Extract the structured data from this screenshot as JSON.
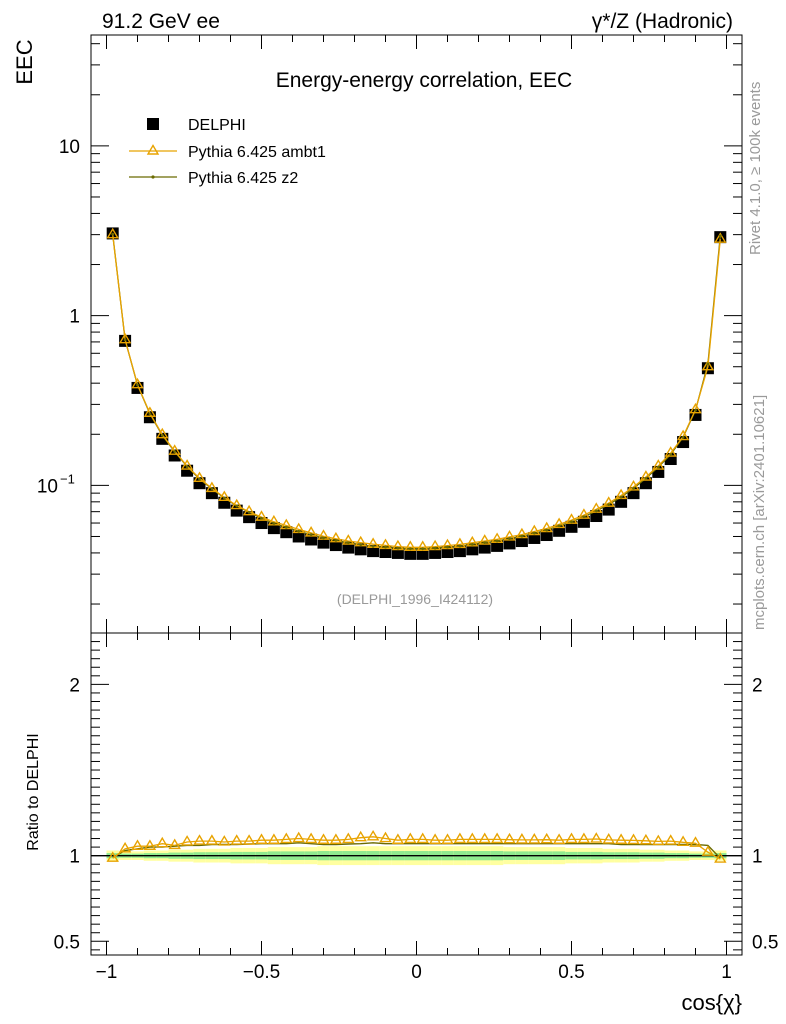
{
  "header": {
    "left_label": "91.2 GeV ee",
    "right_label": "γ*/Z (Hadronic)"
  },
  "side_labels": {
    "rivet": "Rivet 4.1.0, ≥ 100k events",
    "mcplots": "mcplots.cern.ch [arXiv:2401.10621]"
  },
  "chart_data": [
    {
      "type": "scatter",
      "title": "Energy-energy correlation, EEC",
      "watermark": "(DELPHI_1996_I424112)",
      "xlabel": "cos{χ}",
      "ylabel": "EEC",
      "xlim": [
        -1.05,
        1.05
      ],
      "ylim": [
        0.0135,
        45
      ],
      "yscale": "log",
      "y_ticks": [
        {
          "value": 0.1,
          "label": "10",
          "exponent": "−1"
        },
        {
          "value": 1,
          "label": "1"
        },
        {
          "value": 10,
          "label": "10"
        }
      ],
      "x_ticks": [
        "−1",
        "−0.5",
        "0",
        "0.5",
        "1"
      ],
      "x_tick_values": [
        -1,
        -0.5,
        0,
        0.5,
        1
      ],
      "legend": [
        {
          "name": "DELPHI",
          "color": "#000000",
          "marker": "square"
        },
        {
          "name": "Pythia 6.425 ambt1",
          "color": "#E8A300",
          "marker": "triangle"
        },
        {
          "name": "Pythia 6.425 z2",
          "color": "#6B6B00",
          "marker": "dot"
        }
      ],
      "x": [
        -0.98,
        -0.94,
        -0.9,
        -0.86,
        -0.82,
        -0.78,
        -0.74,
        -0.7,
        -0.66,
        -0.62,
        -0.58,
        -0.54,
        -0.5,
        -0.46,
        -0.42,
        -0.38,
        -0.34,
        -0.3,
        -0.26,
        -0.22,
        -0.18,
        -0.14,
        -0.1,
        -0.06,
        -0.02,
        0.02,
        0.06,
        0.1,
        0.14,
        0.18,
        0.22,
        0.26,
        0.3,
        0.34,
        0.38,
        0.42,
        0.46,
        0.5,
        0.54,
        0.58,
        0.62,
        0.66,
        0.7,
        0.74,
        0.78,
        0.82,
        0.86,
        0.9,
        0.94,
        0.98
      ],
      "series": [
        {
          "name": "DELPHI",
          "values": [
            3.05,
            0.71,
            0.375,
            0.252,
            0.188,
            0.15,
            0.122,
            0.103,
            0.09,
            0.079,
            0.071,
            0.065,
            0.06,
            0.056,
            0.053,
            0.05,
            0.048,
            0.046,
            0.0445,
            0.043,
            0.042,
            0.041,
            0.0405,
            0.04,
            0.0395,
            0.0395,
            0.04,
            0.0405,
            0.041,
            0.042,
            0.043,
            0.044,
            0.0455,
            0.047,
            0.049,
            0.051,
            0.054,
            0.057,
            0.061,
            0.066,
            0.072,
            0.08,
            0.09,
            0.103,
            0.12,
            0.143,
            0.18,
            0.26,
            0.49,
            2.9
          ]
        },
        {
          "name": "Pythia 6.425 ambt1",
          "values": [
            3.0,
            0.722,
            0.392,
            0.266,
            0.199,
            0.159,
            0.13,
            0.11,
            0.096,
            0.085,
            0.076,
            0.07,
            0.065,
            0.061,
            0.058,
            0.055,
            0.0525,
            0.0502,
            0.0485,
            0.047,
            0.046,
            0.045,
            0.0443,
            0.0436,
            0.0432,
            0.0432,
            0.0436,
            0.0442,
            0.0449,
            0.0459,
            0.047,
            0.0481,
            0.0497,
            0.0513,
            0.0535,
            0.0557,
            0.0589,
            0.0624,
            0.0668,
            0.0724,
            0.0786,
            0.0872,
            0.098,
            0.112,
            0.13,
            0.155,
            0.194,
            0.279,
            0.5,
            2.82
          ]
        },
        {
          "name": "Pythia 6.425 z2",
          "values": [
            3.02,
            0.72,
            0.39,
            0.264,
            0.197,
            0.158,
            0.129,
            0.109,
            0.0955,
            0.0843,
            0.0757,
            0.0694,
            0.064,
            0.0596,
            0.0566,
            0.0537,
            0.0513,
            0.049,
            0.0474,
            0.0459,
            0.0448,
            0.0437,
            0.0433,
            0.0427,
            0.0423,
            0.0423,
            0.0427,
            0.0433,
            0.0439,
            0.0449,
            0.046,
            0.047,
            0.0486,
            0.0502,
            0.0523,
            0.0545,
            0.0577,
            0.061,
            0.0653,
            0.0707,
            0.077,
            0.0853,
            0.096,
            0.11,
            0.128,
            0.152,
            0.192,
            0.277,
            0.52,
            2.95
          ]
        }
      ]
    },
    {
      "type": "line",
      "ylabel": "Ratio to DELPHI",
      "xlim": [
        -1.05,
        1.05
      ],
      "ylim": [
        0.42,
        2.3
      ],
      "y_ticks_left": [
        "0.5",
        "1",
        "2"
      ],
      "y_ticks_right": [
        "0.5",
        "1",
        "2"
      ],
      "y_tick_values": [
        0.5,
        1,
        2
      ],
      "reference": 1,
      "band_outer_color": "#FFFFA0",
      "band_inner_color": "#8FEA8F",
      "band_outer_halfwidth": [
        0.03,
        0.025,
        0.025,
        0.03,
        0.03,
        0.035,
        0.035,
        0.04,
        0.04,
        0.04,
        0.045,
        0.045,
        0.045,
        0.05,
        0.05,
        0.05,
        0.05,
        0.055,
        0.055,
        0.055,
        0.055,
        0.055,
        0.055,
        0.055,
        0.055,
        0.055,
        0.055,
        0.055,
        0.055,
        0.055,
        0.055,
        0.055,
        0.05,
        0.05,
        0.05,
        0.05,
        0.05,
        0.045,
        0.045,
        0.045,
        0.04,
        0.04,
        0.04,
        0.035,
        0.035,
        0.03,
        0.03,
        0.025,
        0.025,
        0.03
      ],
      "band_inner_halfwidth": [
        0.015,
        0.012,
        0.012,
        0.015,
        0.015,
        0.018,
        0.018,
        0.02,
        0.02,
        0.02,
        0.022,
        0.022,
        0.022,
        0.025,
        0.025,
        0.025,
        0.025,
        0.027,
        0.027,
        0.027,
        0.027,
        0.027,
        0.027,
        0.027,
        0.027,
        0.027,
        0.027,
        0.027,
        0.027,
        0.027,
        0.027,
        0.027,
        0.025,
        0.025,
        0.025,
        0.025,
        0.025,
        0.022,
        0.022,
        0.022,
        0.02,
        0.02,
        0.02,
        0.018,
        0.018,
        0.015,
        0.015,
        0.012,
        0.012,
        0.015
      ],
      "series": [
        {
          "name": "Pythia 6.425 ambt1",
          "values": [
            0.985,
            1.04,
            1.055,
            1.055,
            1.07,
            1.06,
            1.08,
            1.085,
            1.085,
            1.08,
            1.085,
            1.085,
            1.09,
            1.09,
            1.095,
            1.1,
            1.095,
            1.09,
            1.09,
            1.095,
            1.105,
            1.11,
            1.1,
            1.09,
            1.095,
            1.095,
            1.09,
            1.09,
            1.095,
            1.095,
            1.095,
            1.095,
            1.093,
            1.092,
            1.092,
            1.093,
            1.09,
            1.095,
            1.095,
            1.097,
            1.092,
            1.09,
            1.089,
            1.087,
            1.083,
            1.085,
            1.078,
            1.073,
            1.02,
            0.98
          ]
        },
        {
          "name": "Pythia 6.425 z2",
          "values": [
            0.99,
            1.03,
            1.04,
            1.05,
            1.05,
            1.055,
            1.06,
            1.06,
            1.065,
            1.065,
            1.065,
            1.068,
            1.07,
            1.07,
            1.07,
            1.075,
            1.07,
            1.065,
            1.065,
            1.068,
            1.07,
            1.075,
            1.07,
            1.07,
            1.07,
            1.07,
            1.07,
            1.07,
            1.07,
            1.07,
            1.07,
            1.07,
            1.07,
            1.07,
            1.07,
            1.07,
            1.07,
            1.07,
            1.07,
            1.07,
            1.07,
            1.065,
            1.065,
            1.065,
            1.065,
            1.065,
            1.065,
            1.066,
            1.06,
            0.985
          ]
        }
      ]
    }
  ]
}
